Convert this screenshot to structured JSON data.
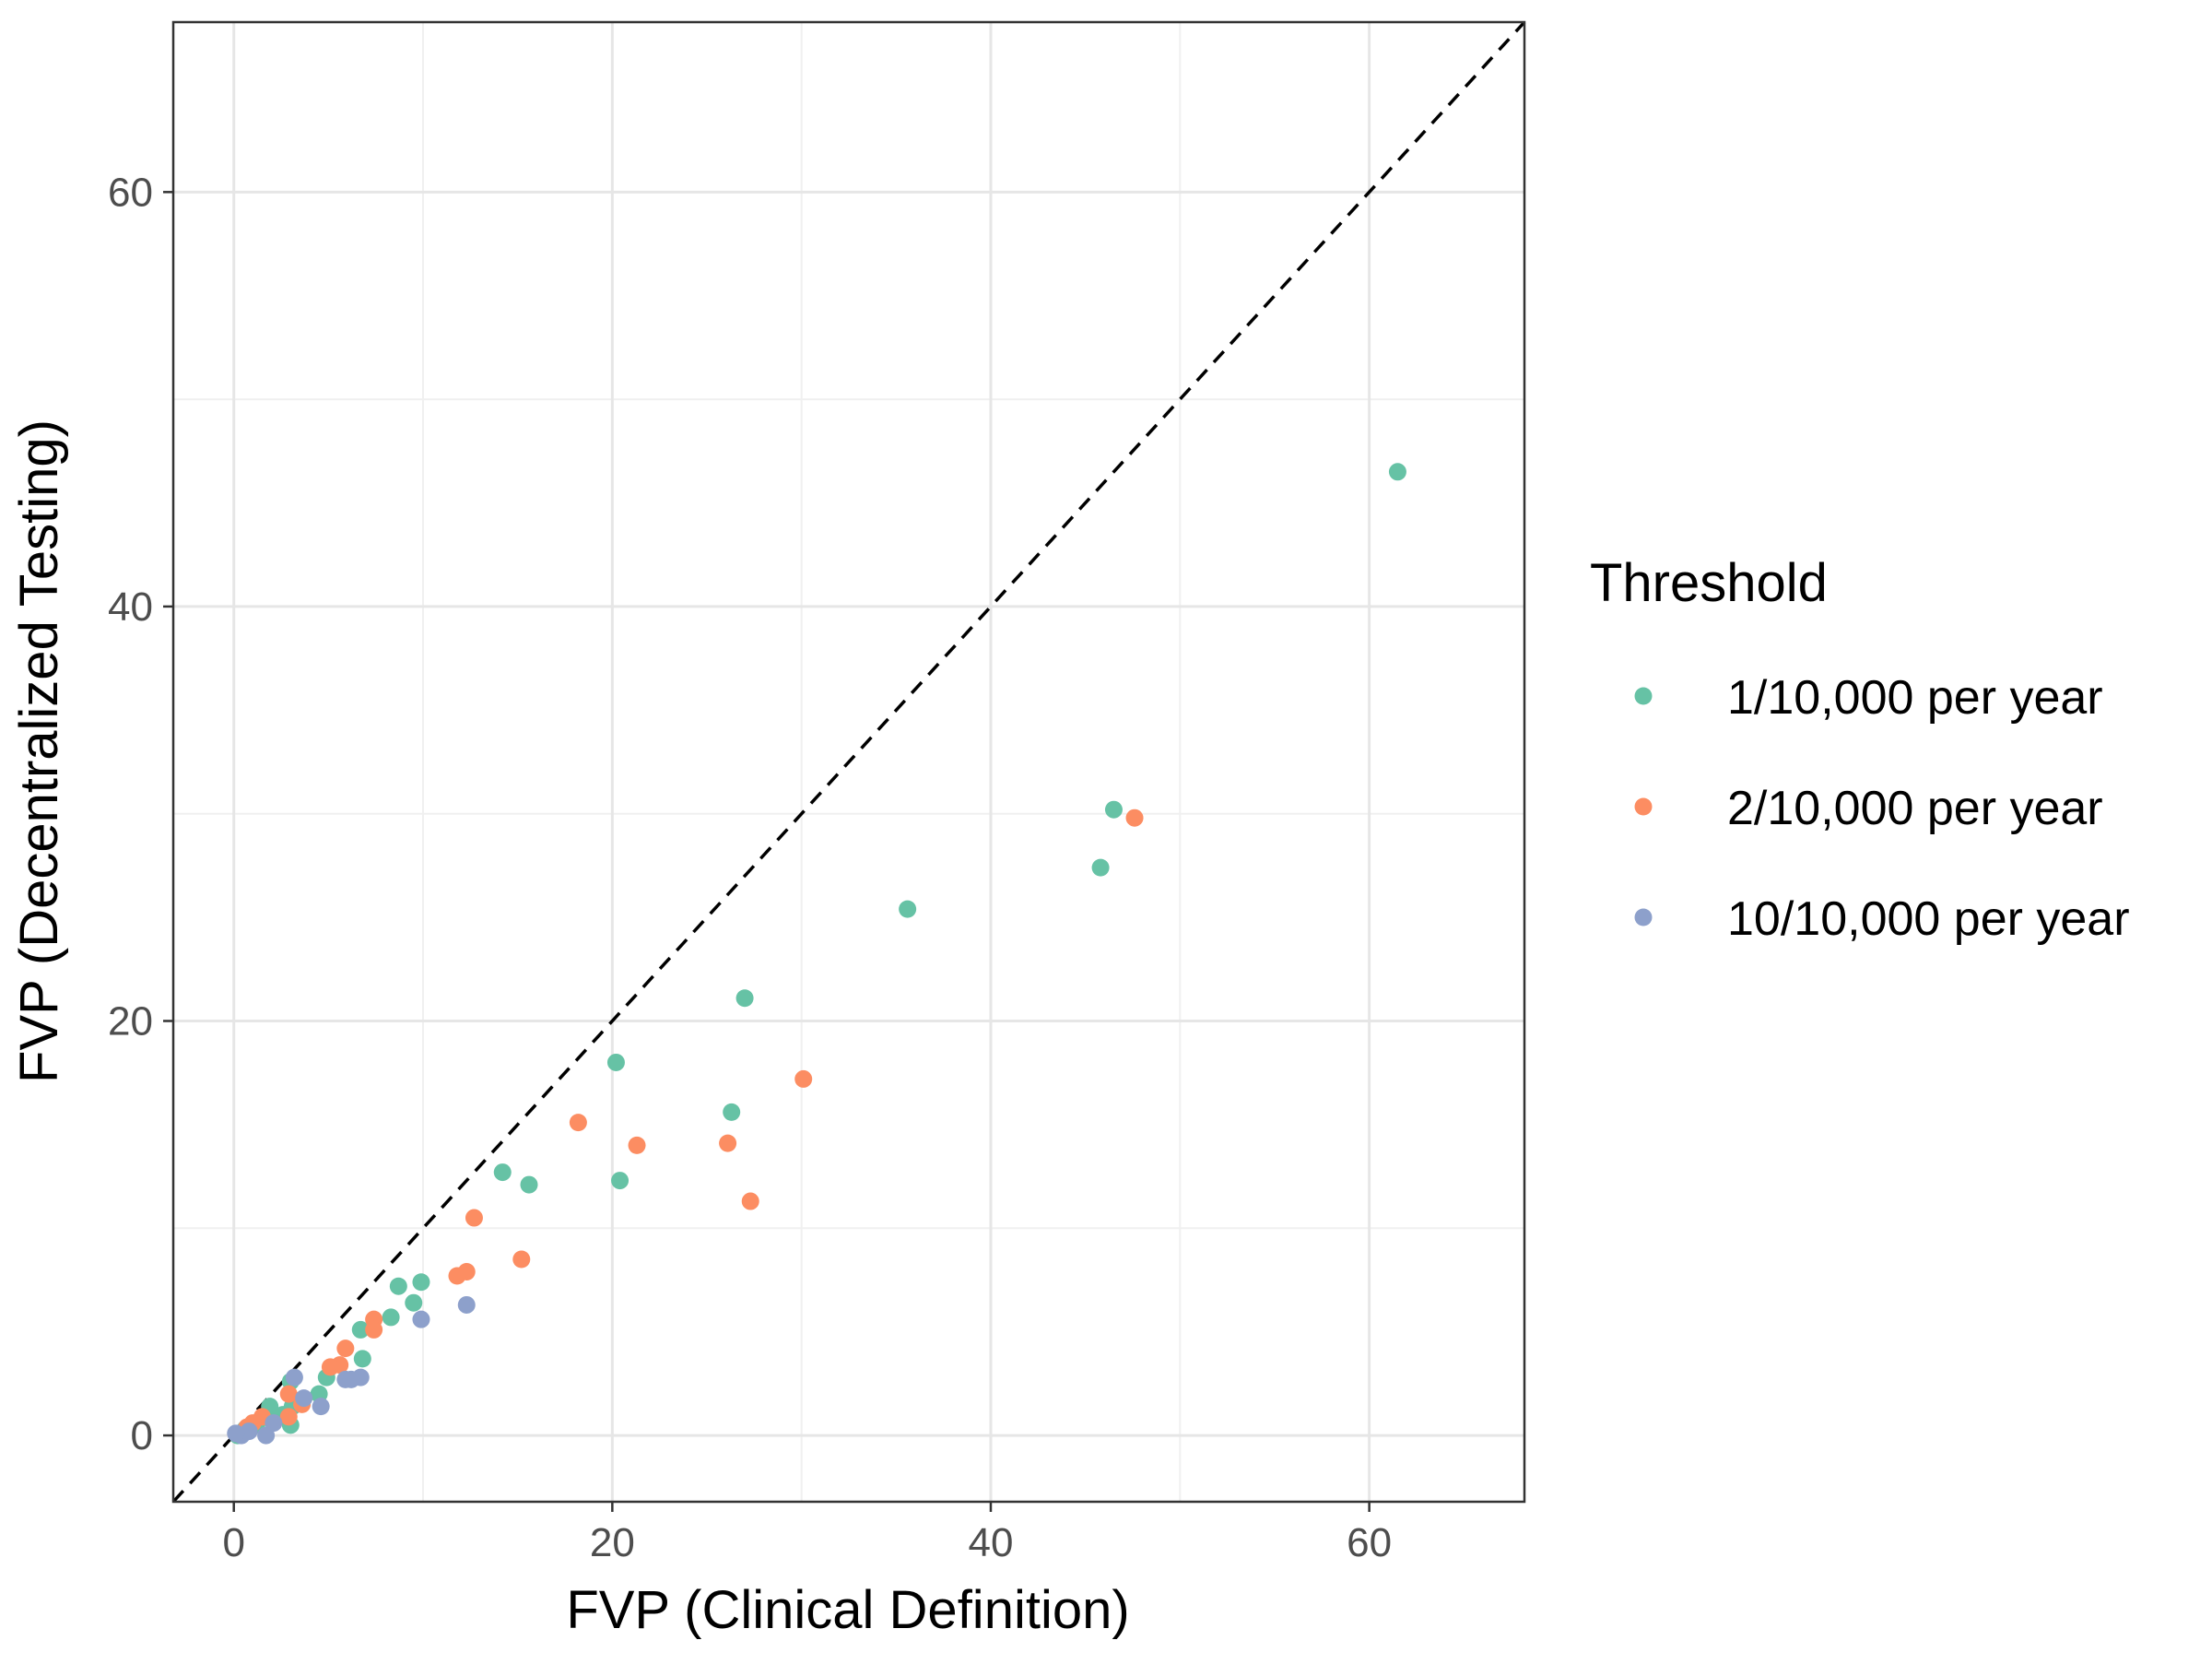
{
  "chart_data": {
    "type": "scatter",
    "title": "",
    "xlabel": "FVP (Clinical Definition)",
    "ylabel": "FVP (Decentralized Testing)",
    "xlim": [
      -3.2,
      68.2
    ],
    "ylim": [
      -3.2,
      68.2
    ],
    "x_ticks": [
      0,
      20,
      40,
      60
    ],
    "y_ticks": [
      0,
      20,
      40,
      60
    ],
    "x_tick_labels": [
      "0",
      "20",
      "40",
      "60"
    ],
    "y_tick_labels": [
      "0",
      "20",
      "40",
      "60"
    ],
    "grid": true,
    "reference_line": {
      "type": "identity",
      "style": "dashed",
      "color": "#000000"
    },
    "legend": {
      "title": "Threshold",
      "position": "right"
    },
    "series": [
      {
        "name": "1/10,000 per year",
        "color": "#66C2A5",
        "points": [
          [
            61.5,
            46.5
          ],
          [
            46.5,
            30.2
          ],
          [
            45.8,
            27.4
          ],
          [
            35.6,
            25.4
          ],
          [
            27.0,
            21.1
          ],
          [
            20.2,
            18.0
          ],
          [
            26.3,
            15.6
          ],
          [
            14.2,
            12.7
          ],
          [
            15.6,
            12.1
          ],
          [
            20.4,
            12.3
          ],
          [
            8.7,
            7.2
          ],
          [
            9.9,
            7.4
          ],
          [
            9.5,
            6.4
          ],
          [
            8.3,
            5.7
          ],
          [
            6.7,
            5.1
          ],
          [
            6.8,
            3.7
          ],
          [
            4.9,
            2.8
          ],
          [
            4.5,
            2.0
          ],
          [
            3.0,
            2.6
          ],
          [
            3.1,
            1.4
          ],
          [
            2.6,
            1.0
          ],
          [
            3.0,
            0.5
          ],
          [
            1.9,
            1.4
          ],
          [
            2.0,
            0.8
          ],
          [
            1.2,
            0.5
          ],
          [
            0.6,
            0.3
          ],
          [
            0.2,
            0.0
          ]
        ]
      },
      {
        "name": "2/10,000 per year",
        "color": "#FC8D62",
        "points": [
          [
            47.6,
            29.8
          ],
          [
            30.1,
            17.2
          ],
          [
            18.2,
            15.1
          ],
          [
            21.3,
            14.0
          ],
          [
            26.1,
            14.1
          ],
          [
            27.3,
            11.3
          ],
          [
            12.7,
            10.5
          ],
          [
            15.2,
            8.5
          ],
          [
            12.3,
            7.9
          ],
          [
            11.8,
            7.7
          ],
          [
            7.4,
            5.6
          ],
          [
            7.4,
            5.1
          ],
          [
            5.9,
            4.2
          ],
          [
            5.6,
            3.4
          ],
          [
            5.1,
            3.3
          ],
          [
            2.9,
            2.0
          ],
          [
            3.6,
            1.5
          ],
          [
            2.9,
            0.9
          ],
          [
            1.5,
            0.9
          ],
          [
            1.0,
            0.6
          ],
          [
            0.7,
            0.4
          ],
          [
            0.3,
            0.1
          ]
        ]
      },
      {
        "name": "10/10,000 per year",
        "color": "#8DA0CB",
        "points": [
          [
            12.3,
            6.3
          ],
          [
            9.9,
            5.6
          ],
          [
            6.7,
            2.8
          ],
          [
            5.9,
            2.7
          ],
          [
            6.2,
            2.7
          ],
          [
            3.2,
            2.8
          ],
          [
            3.7,
            1.8
          ],
          [
            4.6,
            1.4
          ],
          [
            2.1,
            0.6
          ],
          [
            1.7,
            0.0
          ],
          [
            0.8,
            0.2
          ],
          [
            0.4,
            0.0
          ],
          [
            0.1,
            0.1
          ]
        ]
      }
    ]
  }
}
